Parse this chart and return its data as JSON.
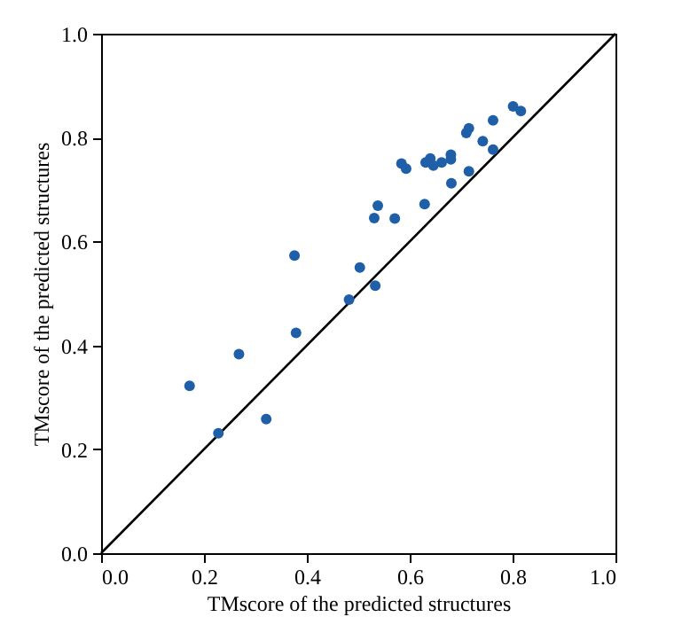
{
  "chart_data": {
    "type": "scatter",
    "xlabel": "TMscore of the predicted structures",
    "ylabel": "TMscore of the predicted structures",
    "xlim": [
      0,
      1
    ],
    "ylim": [
      0,
      1
    ],
    "xticks": [
      {
        "value": 0,
        "label": "0.0"
      },
      {
        "value": 0.2,
        "label": "0.2"
      },
      {
        "value": 0.4,
        "label": "0.4"
      },
      {
        "value": 0.6,
        "label": "0.6"
      },
      {
        "value": 0.8,
        "label": "0.8"
      },
      {
        "value": 1,
        "label": "1.0"
      }
    ],
    "yticks": [
      {
        "value": 0,
        "label": "0.0"
      },
      {
        "value": 0.2,
        "label": "0.2"
      },
      {
        "value": 0.4,
        "label": "0.4"
      },
      {
        "value": 0.6,
        "label": "0.6"
      },
      {
        "value": 0.8,
        "label": "0.8"
      },
      {
        "value": 1,
        "label": "1.0"
      }
    ],
    "grid": false,
    "series": [
      {
        "marker": "circle",
        "color": "#1f5fa8",
        "x": [
          0.376,
          0.503,
          0.538,
          0.531,
          0.571,
          0.584,
          0.593,
          0.629,
          0.631,
          0.64,
          0.646,
          0.662,
          0.68,
          0.68,
          0.681,
          0.71,
          0.715,
          0.715,
          0.742,
          0.762,
          0.762,
          0.801,
          0.816,
          0.172,
          0.228,
          0.268,
          0.321,
          0.379,
          0.482,
          0.533
        ],
        "values": [
          0.573,
          0.55,
          0.669,
          0.645,
          0.644,
          0.75,
          0.74,
          0.672,
          0.752,
          0.76,
          0.746,
          0.752,
          0.767,
          0.758,
          0.712,
          0.809,
          0.818,
          0.735,
          0.793,
          0.833,
          0.777,
          0.86,
          0.851,
          0.322,
          0.231,
          0.383,
          0.258,
          0.424,
          0.488,
          0.515
        ]
      },
      {
        "type": "line",
        "marker": "none",
        "color": "#000000",
        "x": [
          0,
          1
        ],
        "values": [
          0,
          1
        ]
      }
    ]
  }
}
